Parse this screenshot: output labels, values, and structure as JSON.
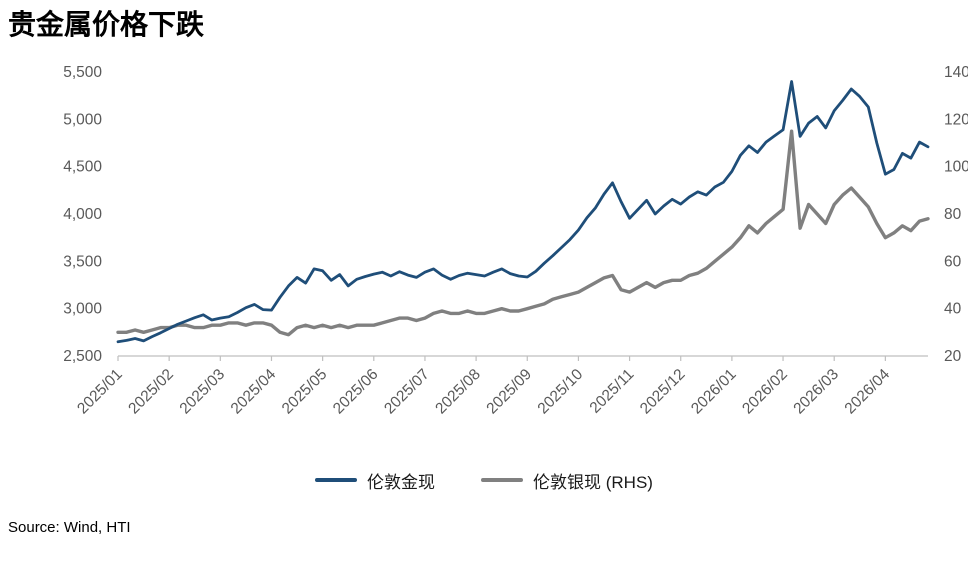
{
  "title": "贵金属价格下跌",
  "source": "Source: Wind, HTI",
  "chart_data": {
    "type": "line",
    "title": "贵金属价格下跌",
    "grid": false,
    "legend_position": "bottom",
    "axis_color": "#bfbfbf",
    "tick_color": "#595959",
    "x_labels": [
      "2025/01",
      "2025/02",
      "2025/03",
      "2025/04",
      "2025/05",
      "2025/06",
      "2025/07",
      "2025/08",
      "2025/09",
      "2025/10",
      "2025/11",
      "2025/12",
      "2026/01",
      "2026/02",
      "2026/03",
      "2026/04"
    ],
    "points_per_month": 6,
    "left_axis": {
      "min": 2500,
      "max": 5500,
      "ticks": [
        "2,500",
        "3,000",
        "3,500",
        "4,000",
        "4,500",
        "5,000",
        "5,500"
      ]
    },
    "right_axis": {
      "min": 20,
      "max": 140,
      "ticks": [
        "20",
        "40",
        "60",
        "80",
        "100",
        "120",
        "140"
      ]
    },
    "series": [
      {
        "name": "伦敦金现",
        "axis": "left",
        "color": "#1f4e79",
        "stroke_width": 2.8,
        "values": [
          2650,
          2665,
          2685,
          2660,
          2705,
          2745,
          2790,
          2835,
          2870,
          2905,
          2935,
          2880,
          2900,
          2915,
          2960,
          3010,
          3045,
          2990,
          2985,
          3120,
          3240,
          3330,
          3270,
          3420,
          3400,
          3300,
          3360,
          3240,
          3310,
          3340,
          3365,
          3385,
          3345,
          3390,
          3355,
          3330,
          3385,
          3420,
          3355,
          3310,
          3350,
          3375,
          3360,
          3345,
          3385,
          3420,
          3370,
          3345,
          3335,
          3395,
          3480,
          3560,
          3645,
          3730,
          3830,
          3960,
          4065,
          4210,
          4330,
          4130,
          3955,
          4050,
          4145,
          4000,
          4085,
          4155,
          4105,
          4180,
          4235,
          4200,
          4285,
          4335,
          4450,
          4620,
          4720,
          4650,
          4760,
          4825,
          4890,
          5400,
          4820,
          4960,
          5030,
          4910,
          5090,
          5200,
          5320,
          5240,
          5130,
          4750,
          4420,
          4470,
          4640,
          4590,
          4760,
          4710
        ]
      },
      {
        "name": "伦敦银现 (RHS)",
        "axis": "right",
        "color": "#808080",
        "stroke_width": 3.4,
        "values": [
          30,
          30,
          31,
          30,
          31,
          32,
          32,
          33,
          33,
          32,
          32,
          33,
          33,
          34,
          34,
          33,
          34,
          34,
          33,
          30,
          29,
          32,
          33,
          32,
          33,
          32,
          33,
          32,
          33,
          33,
          33,
          34,
          35,
          36,
          36,
          35,
          36,
          38,
          39,
          38,
          38,
          39,
          38,
          38,
          39,
          40,
          39,
          39,
          40,
          41,
          42,
          44,
          45,
          46,
          47,
          49,
          51,
          53,
          54,
          48,
          47,
          49,
          51,
          49,
          51,
          52,
          52,
          54,
          55,
          57,
          60,
          63,
          66,
          70,
          75,
          72,
          76,
          79,
          82,
          115,
          74,
          84,
          80,
          76,
          84,
          88,
          91,
          87,
          83,
          76,
          70,
          72,
          75,
          73,
          77,
          78
        ]
      }
    ]
  },
  "legend": {
    "gold_label": "伦敦金现",
    "silver_label": "伦敦银现 (RHS)"
  }
}
